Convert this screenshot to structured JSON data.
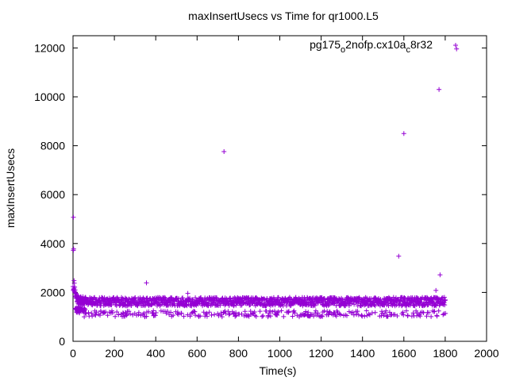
{
  "chart_data": {
    "type": "scatter",
    "title": "maxInsertUsecs vs Time for qr1000.L5",
    "xlabel": "Time(s)",
    "ylabel": "maxInsertUsecs",
    "xlim": [
      0,
      2000
    ],
    "ylim": [
      0,
      12500
    ],
    "xticks": [
      0,
      200,
      400,
      600,
      800,
      1000,
      1200,
      1400,
      1600,
      1800,
      2000
    ],
    "yticks": [
      0,
      2000,
      4000,
      6000,
      8000,
      10000,
      12000
    ],
    "legend": {
      "position": "top-right",
      "label_parts": [
        "pg175",
        "o",
        "2nofp.cx10a",
        "c",
        "8r32"
      ]
    },
    "series": [
      {
        "name": "pg175_o2nofp.cx10a_c8r32",
        "marker": "+",
        "color": "#9400d3",
        "outliers": [
          [
            2,
            5070
          ],
          [
            3,
            3780
          ],
          [
            2,
            3720
          ],
          [
            5,
            2480
          ],
          [
            6,
            2380
          ],
          [
            8,
            2220
          ],
          [
            10,
            2100
          ],
          [
            15,
            1950
          ],
          [
            20,
            1880
          ],
          [
            355,
            2390
          ],
          [
            555,
            1960
          ],
          [
            730,
            7760
          ],
          [
            1575,
            3480
          ],
          [
            1600,
            8500
          ],
          [
            1755,
            2080
          ],
          [
            1770,
            10300
          ],
          [
            1775,
            2720
          ],
          [
            1855,
            11960
          ]
        ],
        "band": {
          "x_range": [
            20,
            1800
          ],
          "main_band_range": [
            1450,
            1800
          ],
          "low_band_range": [
            1000,
            1250
          ]
        }
      }
    ]
  }
}
